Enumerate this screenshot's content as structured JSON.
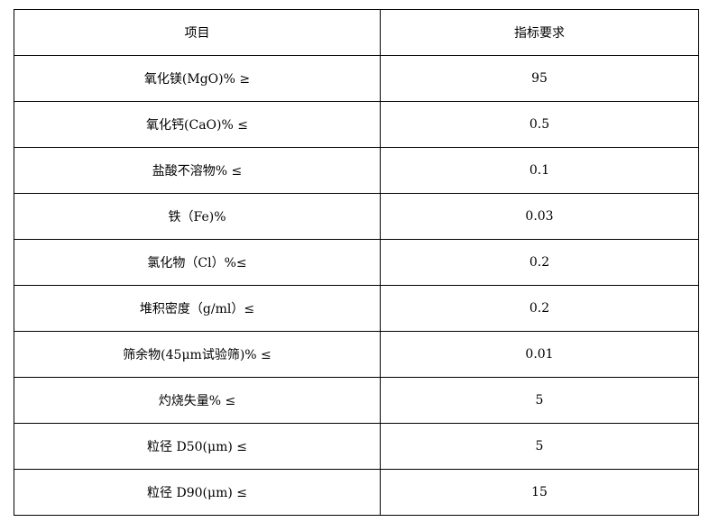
{
  "table": {
    "headers": [
      "项目",
      "指标要求"
    ],
    "rows": [
      {
        "item": "氧化镁(MgO)% ≥",
        "value": "95"
      },
      {
        "item": "氧化钙(CaO)% ≤",
        "value": "0.5"
      },
      {
        "item": "盐酸不溶物% ≤",
        "value": "0.1"
      },
      {
        "item": "铁（Fe)%",
        "value": "0.03"
      },
      {
        "item": "氯化物（Cl）%≤",
        "value": "0.2"
      },
      {
        "item": "堆积密度（g/ml）≤",
        "value": "0.2"
      },
      {
        "item": "筛余物(45μm试验筛)% ≤",
        "value": "0.01"
      },
      {
        "item": "灼烧失量% ≤",
        "value": "5"
      },
      {
        "item": "粒径 D50(μm) ≤",
        "value": "5"
      },
      {
        "item": "粒径 D90(μm) ≤",
        "value": "15"
      }
    ]
  }
}
